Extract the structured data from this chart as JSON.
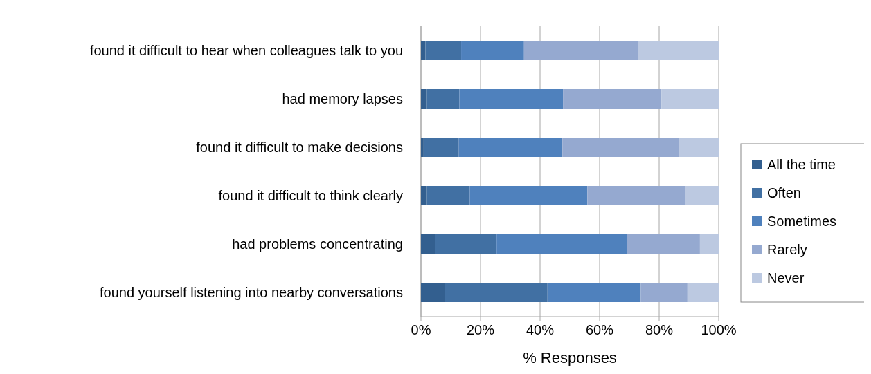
{
  "chart_data": {
    "type": "bar",
    "orientation": "horizontal",
    "stacked": true,
    "xlabel": "% Responses",
    "categories": [
      "found it difficult to hear when colleagues talk to you",
      "had memory lapses",
      "found it difficult to make decisions",
      "found it difficult to think clearly",
      "had problems concentrating",
      "found yourself listening into nearby conversations"
    ],
    "series": [
      {
        "name": "All the time",
        "color": "#335f8f",
        "values": [
          1.5,
          2.0,
          0.9,
          2.0,
          4.7,
          8.0
        ]
      },
      {
        "name": "Often",
        "color": "#4170a3",
        "values": [
          12.0,
          10.9,
          11.8,
          14.4,
          20.7,
          34.5
        ]
      },
      {
        "name": "Sometimes",
        "color": "#4f81bd",
        "values": [
          21.1,
          34.8,
          34.8,
          39.5,
          43.9,
          31.3
        ]
      },
      {
        "name": "Rarely",
        "color": "#95a9d0",
        "values": [
          38.3,
          33.1,
          39.2,
          32.9,
          24.4,
          15.7
        ]
      },
      {
        "name": "Never",
        "color": "#bcc9e1",
        "values": [
          27.1,
          19.2,
          13.3,
          11.2,
          6.3,
          10.5
        ]
      }
    ],
    "xlim": [
      0,
      100
    ],
    "xticks": [
      {
        "value": 0,
        "label": "0%"
      },
      {
        "value": 20,
        "label": "20%"
      },
      {
        "value": 40,
        "label": "40%"
      },
      {
        "value": 60,
        "label": "60%"
      },
      {
        "value": 80,
        "label": "80%"
      },
      {
        "value": 100,
        "label": "100%"
      }
    ],
    "grid": "x",
    "legend": "right"
  }
}
